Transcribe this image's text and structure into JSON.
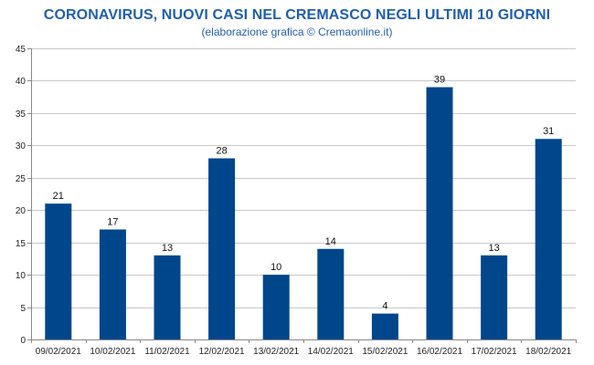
{
  "chart_data": {
    "type": "bar",
    "title": "CORONAVIRUS, NUOVI CASI NEL CREMASCO NEGLI ULTIMI 10 GIORNI",
    "subtitle": "(elaborazione grafica © Cremaonline.it)",
    "xlabel": "",
    "ylabel": "",
    "categories": [
      "09/02/2021",
      "10/02/2021",
      "11/02/2021",
      "12/02/2021",
      "13/02/2021",
      "14/02/2021",
      "15/02/2021",
      "16/02/2021",
      "17/02/2021",
      "18/02/2021"
    ],
    "values": [
      21,
      17,
      13,
      28,
      10,
      14,
      4,
      39,
      13,
      31
    ],
    "ylim": [
      0,
      45
    ],
    "yticks": [
      0,
      5,
      10,
      15,
      20,
      25,
      30,
      35,
      40,
      45
    ],
    "grid": true,
    "legend": "none",
    "bar_color": "#00468b",
    "grid_color": "#c8c8c8"
  }
}
